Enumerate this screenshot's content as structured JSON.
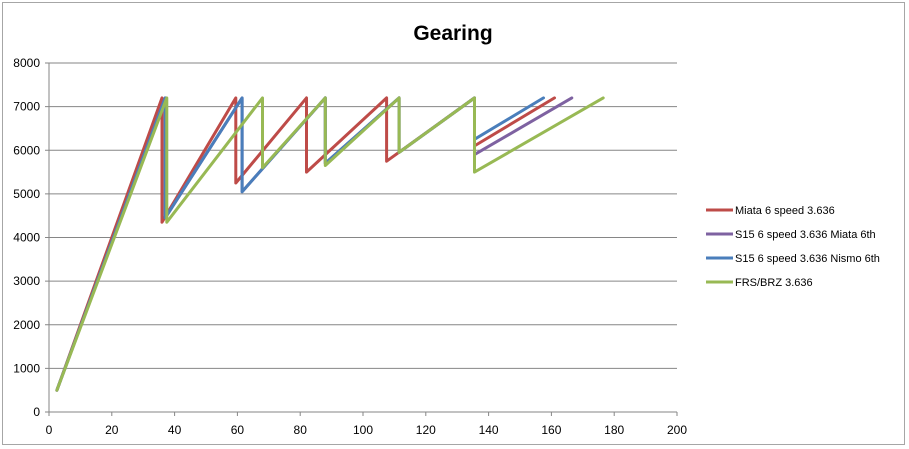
{
  "chart_data": {
    "type": "line",
    "title": "Gearing",
    "xlabel": "",
    "ylabel": "",
    "xlim": [
      0,
      200
    ],
    "ylim": [
      0,
      8000
    ],
    "x_ticks": [
      0,
      20,
      40,
      60,
      80,
      100,
      120,
      140,
      160,
      180,
      200
    ],
    "y_ticks": [
      0,
      1000,
      2000,
      3000,
      4000,
      5000,
      6000,
      7000,
      8000
    ],
    "grid": "horizontal",
    "legend_position": "right",
    "series": [
      {
        "name": "Miata 6 speed 3.636",
        "color": "#be4b48",
        "points": [
          [
            2.5,
            500
          ],
          [
            36,
            7200
          ],
          [
            36,
            4350
          ],
          [
            59.5,
            7200
          ],
          [
            59.5,
            5250
          ],
          [
            82,
            7200
          ],
          [
            82,
            5500
          ],
          [
            107.5,
            7200
          ],
          [
            107.5,
            5750
          ],
          [
            135.5,
            7200
          ],
          [
            135.5,
            6100
          ],
          [
            161,
            7200
          ]
        ]
      },
      {
        "name": "S15 6 speed 3.636 Miata 6th",
        "color": "#7e62a1",
        "points": [
          [
            2.5,
            500
          ],
          [
            37,
            7200
          ],
          [
            37,
            4450
          ],
          [
            61.5,
            7200
          ],
          [
            61.5,
            5050
          ],
          [
            88,
            7200
          ],
          [
            88,
            5700
          ],
          [
            111.5,
            7200
          ],
          [
            111.5,
            5950
          ],
          [
            135.5,
            7200
          ],
          [
            135.5,
            5900
          ],
          [
            166.5,
            7200
          ]
        ]
      },
      {
        "name": "S15 6 speed 3.636 Nismo 6th",
        "color": "#4a7ebb",
        "points": [
          [
            2.5,
            500
          ],
          [
            37,
            7200
          ],
          [
            37,
            4450
          ],
          [
            61.5,
            7200
          ],
          [
            61.5,
            5050
          ],
          [
            88,
            7200
          ],
          [
            88,
            5700
          ],
          [
            111.5,
            7200
          ],
          [
            111.5,
            5950
          ],
          [
            135.5,
            7200
          ],
          [
            135.5,
            6250
          ],
          [
            157.5,
            7200
          ]
        ]
      },
      {
        "name": "FRS/BRZ 3.636",
        "color": "#98b954",
        "points": [
          [
            2.5,
            500
          ],
          [
            37.5,
            7200
          ],
          [
            37.5,
            4350
          ],
          [
            68,
            7200
          ],
          [
            68,
            5600
          ],
          [
            88,
            7200
          ],
          [
            88,
            5650
          ],
          [
            111.5,
            7200
          ],
          [
            111.5,
            5950
          ],
          [
            135.5,
            7200
          ],
          [
            135.5,
            5500
          ],
          [
            176.5,
            7200
          ]
        ]
      }
    ]
  }
}
